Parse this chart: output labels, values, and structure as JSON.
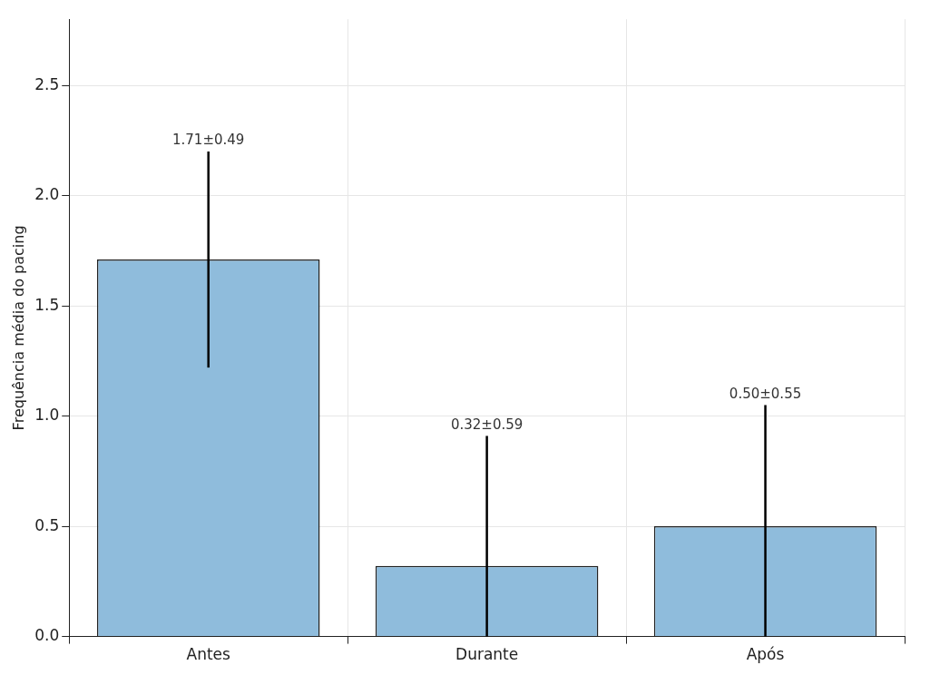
{
  "chart_data": {
    "type": "bar",
    "ylabel": "Frequência média do pacing",
    "categories": [
      "Antes",
      "Durante",
      "Após"
    ],
    "values": [
      1.71,
      0.32,
      0.5
    ],
    "errors": [
      [
        1.22,
        2.2
      ],
      [
        0,
        0.91
      ],
      [
        0,
        1.05
      ]
    ],
    "annotations": [
      {
        "text": "1.71±0.49",
        "x": "Antes",
        "y": 2.2
      },
      {
        "text": "0.32±0.59",
        "x": "Durante",
        "y": 0.91
      },
      {
        "text": "0.50±0.55",
        "x": "Após",
        "y": 1.05
      }
    ],
    "color": "#8fbcdc",
    "ylim": [
      0,
      2.8
    ],
    "yticks": [
      {
        "value": 0,
        "label": "0.0"
      },
      0.5,
      {
        "value": 1,
        "label": "1.0"
      },
      1.5,
      {
        "value": 2,
        "label": "2.0"
      },
      2.5
    ],
    "grid": true,
    "legend": false
  }
}
